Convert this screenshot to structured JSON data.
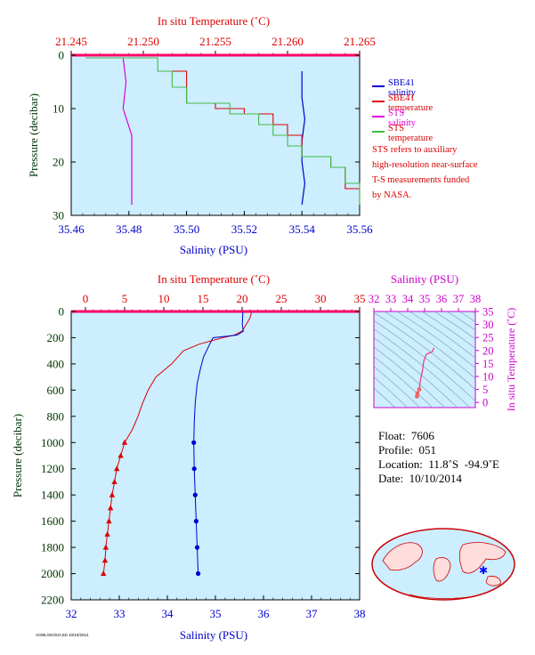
{
  "top_panel": {
    "temp_axis_title": "In situ Temperature (˚C)",
    "temp_ticks": [
      "21.245",
      "21.250",
      "21.255",
      "21.260",
      "21.265"
    ],
    "sal_axis_title": "Salinity (PSU)",
    "sal_ticks": [
      "35.46",
      "35.48",
      "35.50",
      "35.52",
      "35.54",
      "35.56"
    ],
    "pres_axis_title": "Pressure (decibar)",
    "pres_ticks": [
      "0",
      "10",
      "20",
      "30"
    ],
    "legend": [
      {
        "label": "SBE41 salinity",
        "color": "#0000cc"
      },
      {
        "label": "SBE41 temperature",
        "color": "#dd0000"
      },
      {
        "label": "STS salinity",
        "color": "#dd00dd"
      },
      {
        "label": "STS temperature",
        "color": "#44bb44"
      }
    ],
    "note_lines": [
      "STS refers to auxiliary",
      "high-resolution near-surface",
      "T-S measurements funded",
      "by NASA."
    ]
  },
  "bottom_panel": {
    "temp_axis_title": "In situ Temperature (˚C)",
    "temp_ticks": [
      "0",
      "5",
      "10",
      "15",
      "20",
      "25",
      "30",
      "35"
    ],
    "sal_axis_title": "Salinity (PSU)",
    "sal_ticks": [
      "32",
      "33",
      "34",
      "35",
      "36",
      "37",
      "38"
    ],
    "pres_axis_title": "Pressure (decibar)",
    "pres_ticks": [
      "0",
      "200",
      "400",
      "600",
      "800",
      "1000",
      "1200",
      "1400",
      "1600",
      "1800",
      "2000",
      "2200"
    ]
  },
  "ts_panel": {
    "sal_axis_title": "Salinity (PSU)",
    "sal_ticks": [
      "32",
      "33",
      "34",
      "35",
      "36",
      "37",
      "38"
    ],
    "temp_axis_title": "In situ Temperature (˚C)",
    "temp_ticks": [
      "0",
      "5",
      "10",
      "15",
      "20",
      "25",
      "30",
      "35"
    ]
  },
  "info": {
    "float": "Float:  7606",
    "profile": "Profile:  051",
    "location": "Location:  11.8˚S  -94.9˚E",
    "date": "Date:  10/10/2014"
  },
  "footer": "AOML/SIO/UCSD 10/10/2014",
  "colors": {
    "temp": "#dd0000",
    "sal": "#0000cc",
    "sts_sal": "#dd00dd",
    "sts_temp": "#44bb44",
    "plot_bg": "#cceeff",
    "pres_axis": "#003300"
  },
  "chart_data": [
    {
      "type": "line",
      "title": "",
      "x_axes": {
        "temperature": {
          "label": "In situ Temperature (˚C)",
          "range": [
            21.245,
            21.265
          ]
        },
        "salinity": {
          "label": "Salinity (PSU)",
          "range": [
            35.46,
            35.56
          ]
        }
      },
      "ylabel": "Pressure (decibar)",
      "ylim": [
        30,
        0
      ],
      "series": [
        {
          "name": "SBE41 salinity",
          "axis": "salinity",
          "points": [
            [
              35.54,
              3
            ],
            [
              35.54,
              8
            ],
            [
              35.541,
              12
            ],
            [
              35.54,
              16
            ],
            [
              35.54,
              20
            ],
            [
              35.541,
              24
            ],
            [
              35.54,
              28
            ]
          ]
        },
        {
          "name": "SBE41 temperature",
          "axis": "temperature",
          "points": [
            [
              21.252,
              3
            ],
            [
              21.253,
              6
            ],
            [
              21.253,
              9
            ],
            [
              21.255,
              10
            ],
            [
              21.257,
              11
            ],
            [
              21.259,
              13
            ],
            [
              21.26,
              15
            ],
            [
              21.261,
              17
            ],
            [
              21.261,
              19
            ],
            [
              21.263,
              21
            ],
            [
              21.264,
              23
            ],
            [
              21.264,
              25
            ],
            [
              21.265,
              27
            ],
            [
              21.265,
              28
            ]
          ]
        },
        {
          "name": "STS salinity",
          "axis": "salinity",
          "points": [
            [
              35.478,
              0.5
            ],
            [
              35.479,
              5
            ],
            [
              35.478,
              10
            ],
            [
              35.481,
              15
            ],
            [
              35.481,
              20
            ],
            [
              35.481,
              25
            ],
            [
              35.481,
              28
            ]
          ]
        },
        {
          "name": "STS temperature",
          "axis": "temperature",
          "points": [
            [
              21.246,
              0.5
            ],
            [
              21.251,
              3
            ],
            [
              21.252,
              6
            ],
            [
              21.253,
              9
            ],
            [
              21.256,
              11
            ],
            [
              21.258,
              13
            ],
            [
              21.259,
              15
            ],
            [
              21.26,
              17
            ],
            [
              21.261,
              19
            ],
            [
              21.263,
              21
            ],
            [
              21.264,
              24
            ],
            [
              21.265,
              27
            ],
            [
              21.265,
              28
            ]
          ]
        }
      ]
    },
    {
      "type": "line",
      "title": "",
      "x_axes": {
        "temperature": {
          "label": "In situ Temperature (˚C)",
          "range": [
            0,
            35
          ]
        },
        "salinity": {
          "label": "Salinity (PSU)",
          "range": [
            32,
            38
          ]
        }
      },
      "ylabel": "Pressure (decibar)",
      "ylim": [
        2200,
        0
      ],
      "series": [
        {
          "name": "temperature",
          "axis": "temperature",
          "points": [
            [
              21.2,
              5
            ],
            [
              21.0,
              50
            ],
            [
              20.5,
              100
            ],
            [
              20.0,
              150
            ],
            [
              19.0,
              180
            ],
            [
              17.5,
              200
            ],
            [
              14.5,
              250
            ],
            [
              12.5,
              300
            ],
            [
              11.0,
              400
            ],
            [
              9.0,
              500
            ],
            [
              8.0,
              600
            ],
            [
              7.3,
              700
            ],
            [
              6.7,
              800
            ],
            [
              6.0,
              900
            ],
            [
              5.0,
              1000
            ],
            [
              4.5,
              1100
            ],
            [
              4.0,
              1200
            ],
            [
              3.7,
              1300
            ],
            [
              3.4,
              1400
            ],
            [
              3.2,
              1500
            ],
            [
              3.0,
              1600
            ],
            [
              2.8,
              1700
            ],
            [
              2.6,
              1800
            ],
            [
              2.5,
              1900
            ],
            [
              2.3,
              2000
            ]
          ]
        },
        {
          "name": "salinity",
          "axis": "salinity",
          "points": [
            [
              35.57,
              5
            ],
            [
              35.56,
              100
            ],
            [
              35.58,
              150
            ],
            [
              35.45,
              180
            ],
            [
              34.95,
              200
            ],
            [
              34.88,
              250
            ],
            [
              34.75,
              350
            ],
            [
              34.68,
              450
            ],
            [
              34.62,
              550
            ],
            [
              34.58,
              700
            ],
            [
              34.56,
              850
            ],
            [
              34.55,
              1000
            ],
            [
              34.56,
              1200
            ],
            [
              34.58,
              1400
            ],
            [
              34.6,
              1600
            ],
            [
              34.62,
              1800
            ],
            [
              34.64,
              2000
            ]
          ]
        }
      ]
    },
    {
      "type": "line",
      "title": "",
      "xlabel": "Salinity (PSU)",
      "xlim": [
        32,
        38
      ],
      "ylabel": "In situ Temperature (˚C)",
      "ylim": [
        -2,
        35
      ],
      "series": [
        {
          "name": "T-S",
          "points": [
            [
              34.55,
              2.3
            ],
            [
              34.58,
              3.5
            ],
            [
              34.68,
              5.0
            ],
            [
              34.75,
              8.5
            ],
            [
              34.88,
              12.5
            ],
            [
              34.95,
              16.0
            ],
            [
              35.1,
              18.5
            ],
            [
              35.45,
              19.5
            ],
            [
              35.56,
              21.0
            ]
          ]
        }
      ]
    }
  ]
}
